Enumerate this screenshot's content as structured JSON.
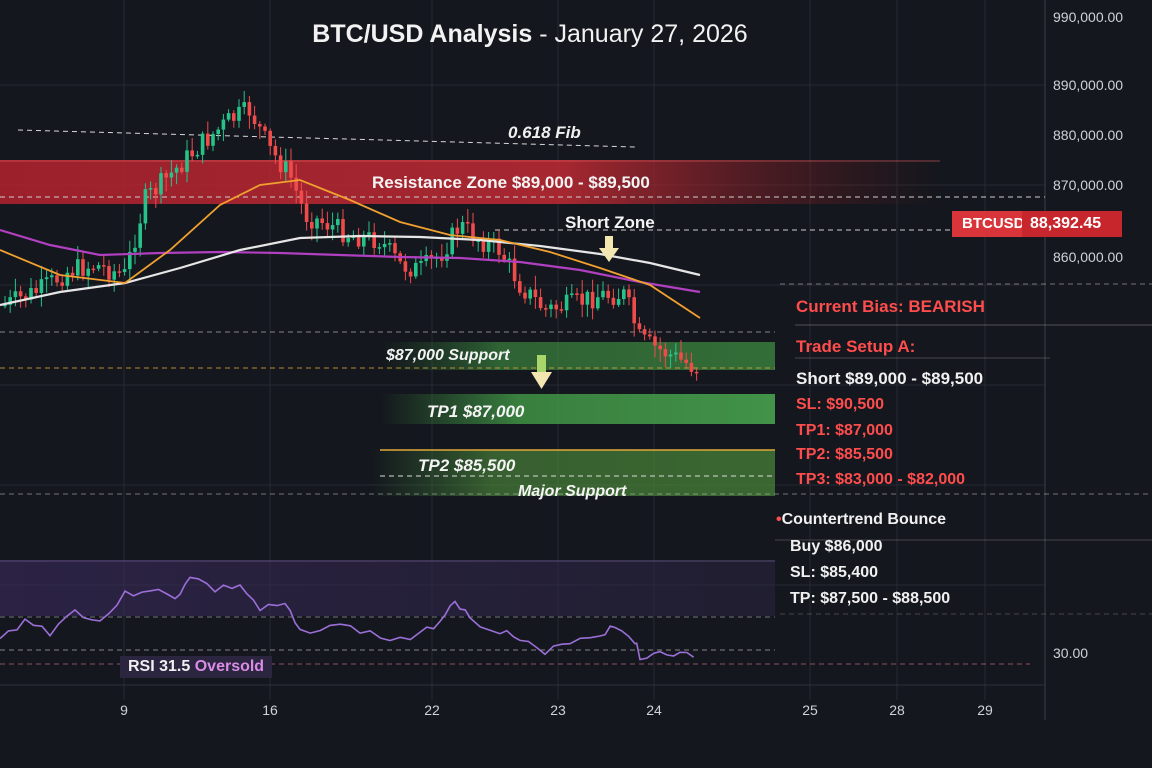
{
  "title": {
    "main": "BTC/USD Analysis",
    "sep": " - ",
    "date": "January 27, 2026"
  },
  "symbol": "BTCUSD",
  "last_price": "88,392.45",
  "colors": {
    "up": "#27c28a",
    "down": "#ef4b4b",
    "resistance": "#d12f3a",
    "support": "#3a8f3e",
    "ema_orange": "#f0a030",
    "sma_white": "#e6e6e6",
    "ma_purple": "#b040c0",
    "rsi": "#9b6fd8"
  },
  "chart_data": [
    {
      "type": "candlestick",
      "title": "BTC/USD Analysis - January 27, 2026",
      "y_axis": {
        "tick_labels": [
          "990,000.00",
          "890,000.00",
          "880,000.00",
          "870,000.00",
          "860,000.00"
        ]
      },
      "x_axis": {
        "tick_labels": [
          "9",
          "16",
          "22",
          "23",
          "24",
          "25",
          "28",
          "29"
        ]
      },
      "annotations": [
        "0.618 Fib",
        "Resistance Zone $89,000 - $89,500",
        "Short Zone",
        "$87,000 Support",
        "TP1 $87,000",
        "TP2 $85,500",
        "Major Support"
      ],
      "series": [
        {
          "name": "",
          "type": "line",
          "color": "orange"
        },
        {
          "name": "",
          "type": "line",
          "color": "white"
        },
        {
          "name": "",
          "type": "line",
          "color": "purple"
        }
      ]
    },
    {
      "type": "line",
      "title": "",
      "y_axis": {
        "tick_labels": [
          "30.00"
        ]
      },
      "series": [
        {
          "name": "RSI",
          "last_value": 31.5
        }
      ],
      "annotations": [
        "RSI 31.5",
        "Oversold"
      ]
    }
  ],
  "trade_panel": {
    "bias": "Current Bias: BEARISH",
    "setup_title": "Trade Setup A:",
    "short": "Short $89,000 - $89,500",
    "sl": "SL: $90,500",
    "tp1": "TP1: $87,000",
    "tp2": "TP2: $85,500",
    "tp3": "TP3: $83,000 - $82,000",
    "counter_title": "Countertrend Bounce",
    "counter_bullet": "•",
    "buy": "Buy $86,000",
    "counter_sl": "SL: $85,400",
    "counter_tp": "TP: $87,500 - $88,500"
  },
  "rsi_label": {
    "name": "RSI 31.5",
    "state": "Oversold"
  }
}
